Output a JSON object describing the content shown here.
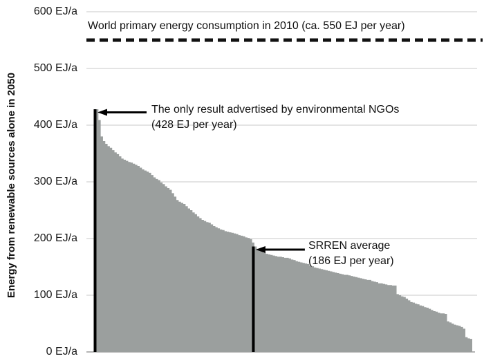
{
  "chart_data": {
    "type": "bar",
    "title": "",
    "xlabel": "",
    "ylabel": "Energy from renewable sources alone in 2050",
    "ylim": [
      0,
      620
    ],
    "grid": true,
    "legend": "none",
    "bar_color": "#9b9f9e",
    "gridline_color": "#c9c9c9",
    "marker_color": "#000000",
    "yticks": [
      {
        "value": 600,
        "label": "600 EJ/a"
      },
      {
        "value": 500,
        "label": "500 EJ/a"
      },
      {
        "value": 400,
        "label": "400 EJ/a"
      },
      {
        "value": 300,
        "label": "300 EJ/a"
      },
      {
        "value": 200,
        "label": "200 EJ/a"
      },
      {
        "value": 100,
        "label": "100 EJ/a"
      },
      {
        "value": 0,
        "label": "0 EJ/a"
      }
    ],
    "series_description": "164 renewable-energy scenario results for 2050, sorted in descending order (EJ per year)",
    "values": [
      428,
      409,
      380,
      372,
      367,
      363,
      360,
      356,
      352,
      349,
      345,
      341,
      339,
      337,
      335,
      334,
      332,
      330,
      328,
      325,
      322,
      320,
      318,
      316,
      312,
      308,
      305,
      303,
      299,
      296,
      292,
      289,
      286,
      280,
      274,
      268,
      265,
      263,
      261,
      257,
      253,
      250,
      246,
      243,
      239,
      236,
      233,
      231,
      229,
      228,
      225,
      222,
      220,
      218,
      216,
      215,
      213,
      212,
      211,
      210,
      209,
      208,
      206,
      205,
      204,
      202,
      201,
      199,
      193,
      186,
      182,
      180,
      178,
      175,
      173,
      172,
      171,
      170,
      169,
      168,
      168,
      167,
      166,
      166,
      165,
      163,
      162,
      160,
      159,
      158,
      157,
      156,
      155,
      152,
      151,
      149,
      148,
      147,
      146,
      145,
      144,
      143,
      142,
      141,
      140,
      139,
      138,
      137,
      136,
      136,
      135,
      134,
      133,
      132,
      131,
      130,
      129,
      128,
      127,
      127,
      125,
      124,
      123,
      121,
      121,
      120,
      119,
      118,
      118,
      117,
      117,
      102,
      100,
      98,
      97,
      94,
      91,
      88,
      87,
      85,
      84,
      82,
      81,
      79,
      78,
      76,
      74,
      72,
      71,
      69,
      68,
      68,
      67,
      54,
      52,
      50,
      48,
      47,
      46,
      44,
      41,
      26,
      24,
      23
    ],
    "reference_line": {
      "value": 550,
      "style": "dashed",
      "color": "#111111",
      "label": "World primary energy consumption in 2010 (ca. 550 EJ per year)"
    },
    "annotations": [
      {
        "id": "ngo",
        "bar_index": 0,
        "value": 428,
        "label_line1": "The only result advertised by environmental NGOs",
        "label_line2": "(428 EJ per year)"
      },
      {
        "id": "srren",
        "bar_index": 69,
        "value": 186,
        "label_line1": "SRREN average",
        "label_line2": "(186 EJ per year)"
      }
    ]
  }
}
